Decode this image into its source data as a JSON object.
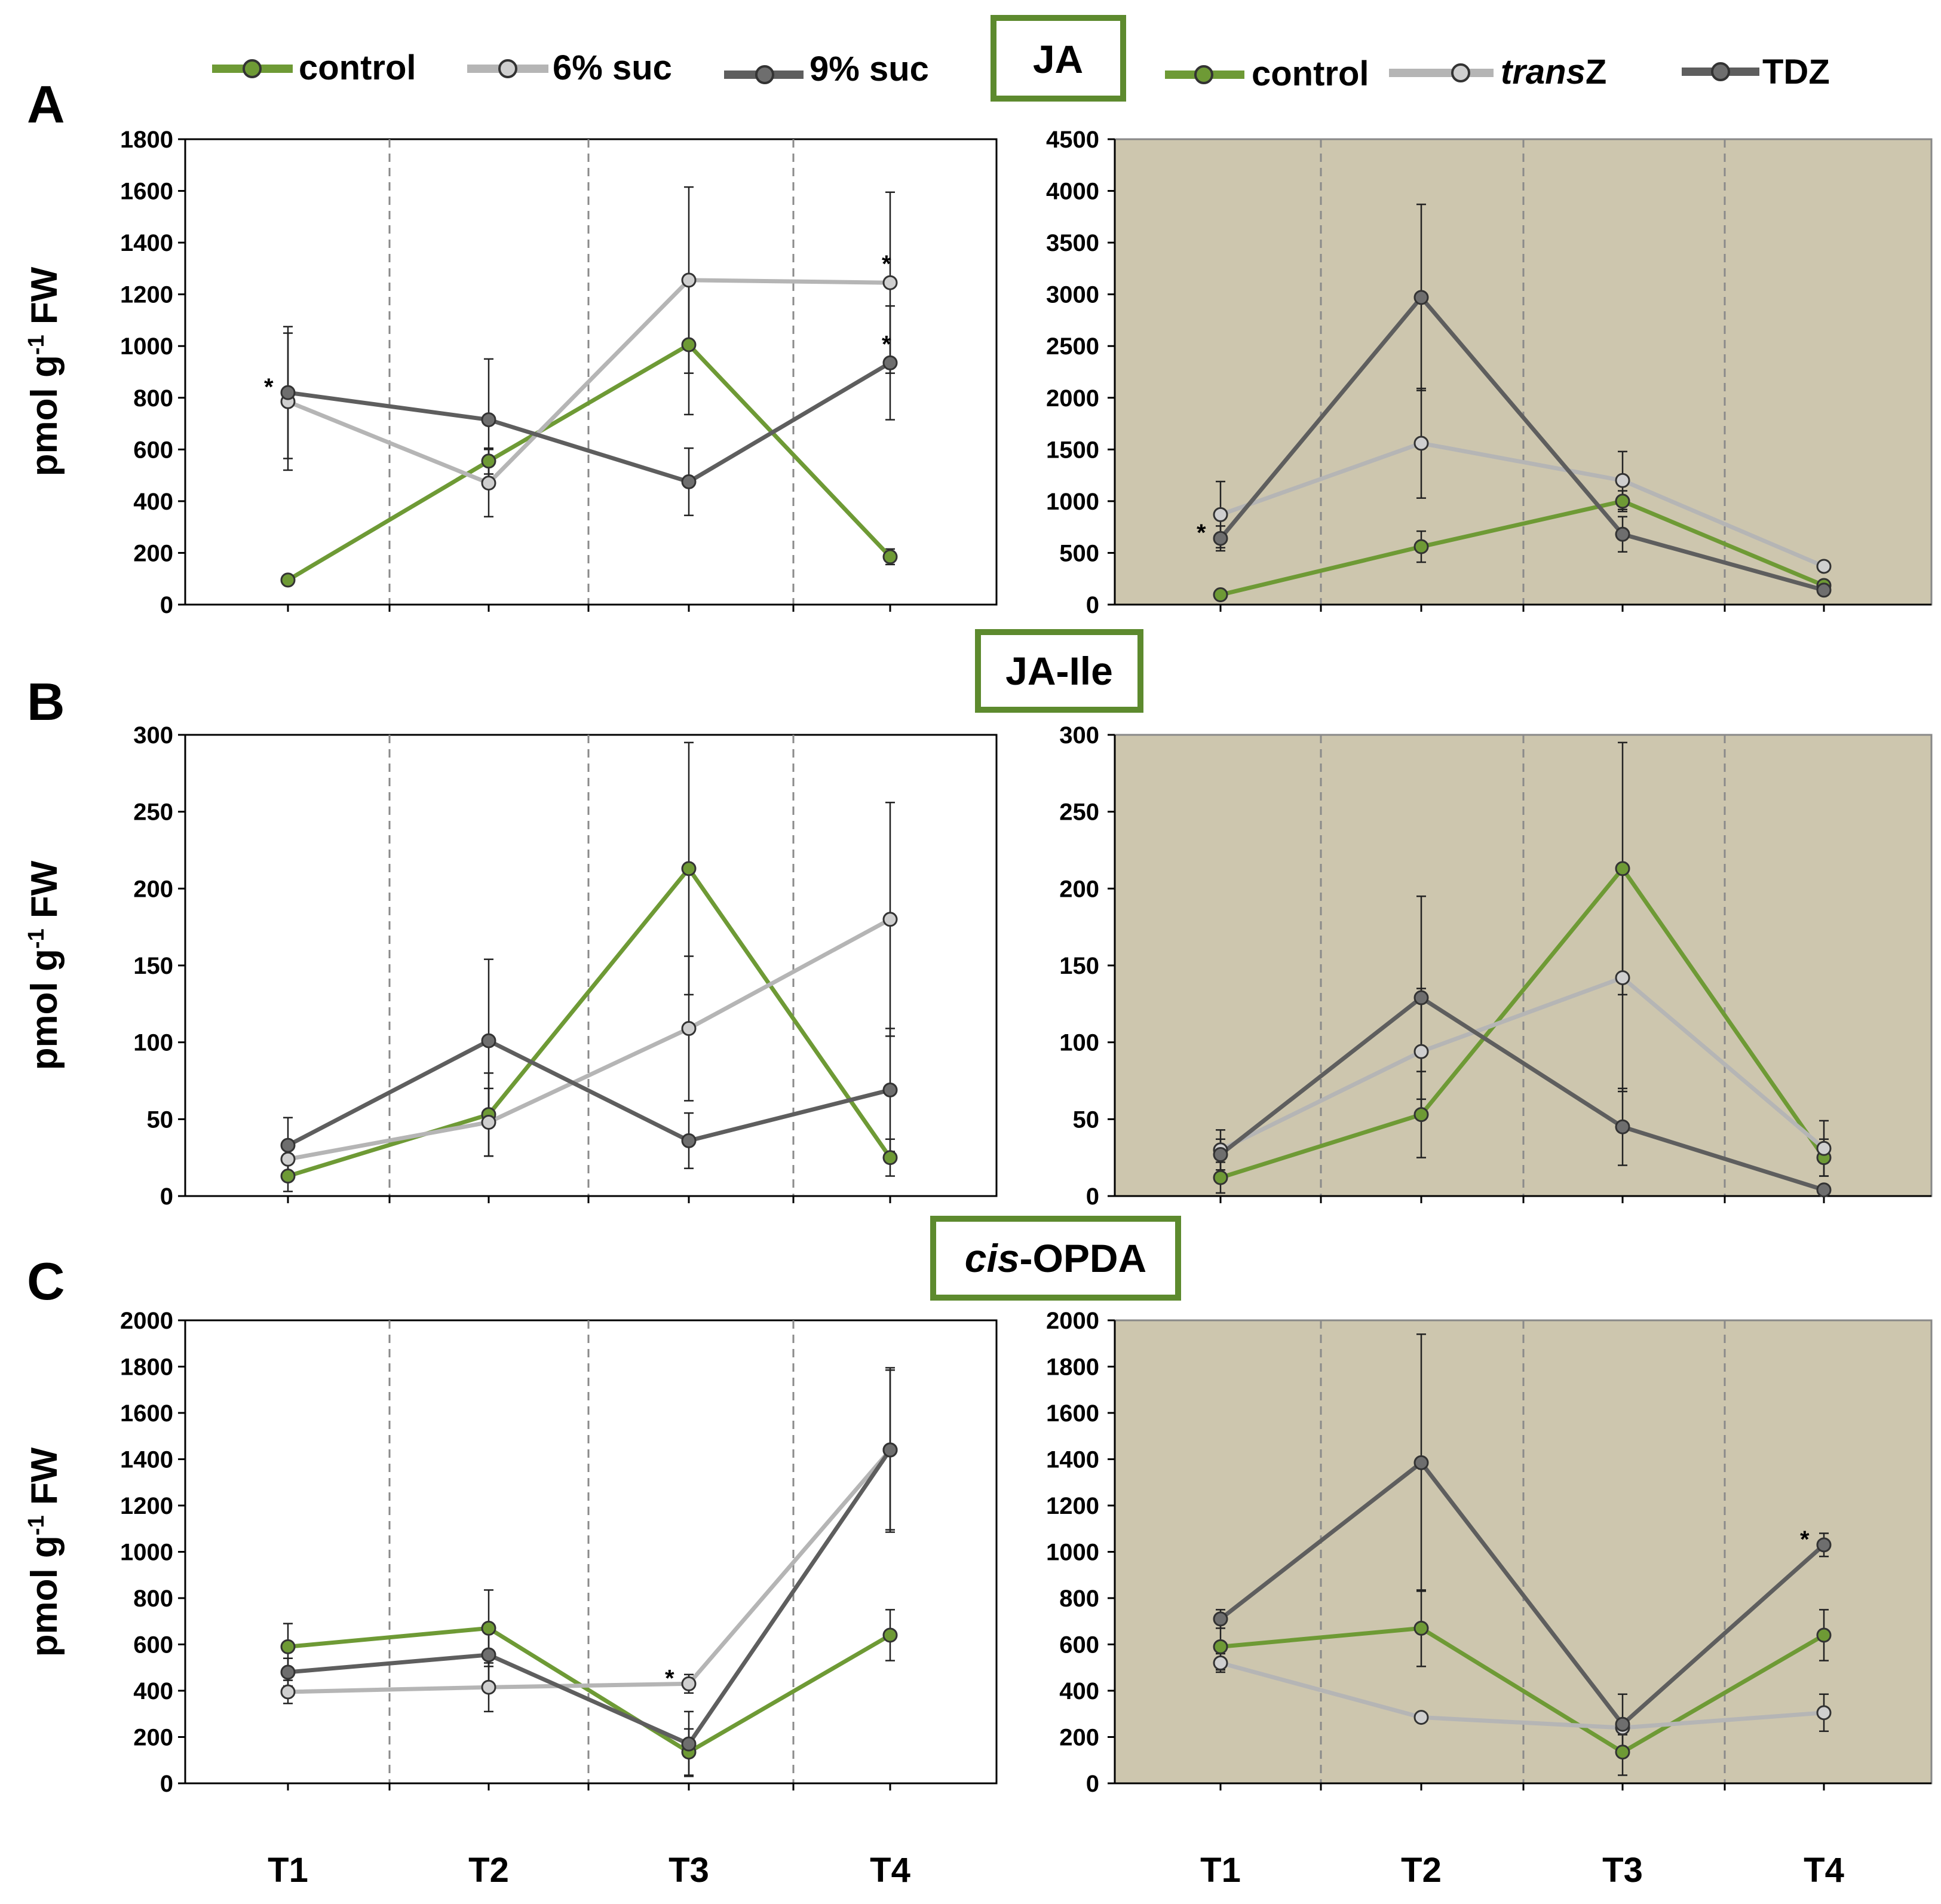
{
  "colors": {
    "control": "#6e9a35",
    "treatment_light": "#b5b5b5",
    "treatment_dark": "#5e5e5e",
    "panel_bg_right": "#cdc6ae",
    "header_border": "#5d8a2e"
  },
  "legend_left": [
    {
      "key": "control",
      "label": "control",
      "color": "#6e9a35"
    },
    {
      "key": "suc6",
      "label": "6% suc",
      "color": "#b5b5b5"
    },
    {
      "key": "suc9",
      "label": "9% suc",
      "color": "#5e5e5e"
    }
  ],
  "legend_right": [
    {
      "key": "control",
      "label": "control",
      "italic_prefix": "",
      "color": "#6e9a35"
    },
    {
      "key": "transZ",
      "label": "Z",
      "italic_prefix": "trans",
      "color": "#b5b5b5"
    },
    {
      "key": "TDZ",
      "label": "TDZ",
      "italic_prefix": "",
      "color": "#5e5e5e"
    }
  ],
  "y_axis_label": "pmol g-1 FW",
  "y_axis_label_parts": {
    "main": "pmol g",
    "sup": "-1",
    "tail": " FW"
  },
  "star": "*",
  "chart_data": [
    {
      "panel": "A",
      "hormone": "JA",
      "side": "left",
      "type": "line",
      "categories": [
        "T1",
        "T2",
        "T3",
        "T4"
      ],
      "ylim": [
        0,
        1800
      ],
      "yticks": [
        0,
        200,
        400,
        600,
        800,
        1000,
        1200,
        1400,
        1600,
        1800
      ],
      "series": [
        {
          "name": "control",
          "values": [
            95,
            555,
            1005,
            185
          ],
          "errors": [
            10,
            50,
            270,
            30
          ]
        },
        {
          "name": "6% suc",
          "values": [
            785,
            470,
            1255,
            1245
          ],
          "errors": [
            265,
            130,
            360,
            350
          ]
        },
        {
          "name": "9% suc",
          "values": [
            820,
            715,
            475,
            935
          ],
          "errors": [
            255,
            235,
            130,
            220
          ]
        }
      ],
      "significance": [
        {
          "series": "9% suc",
          "category": "T1",
          "side": "left"
        },
        {
          "series": "6% suc",
          "category": "T4",
          "side": "top"
        },
        {
          "series": "9% suc",
          "category": "T4",
          "side": "top"
        }
      ]
    },
    {
      "panel": "A",
      "hormone": "JA",
      "side": "right",
      "type": "line",
      "categories": [
        "T1",
        "T2",
        "T3",
        "T4"
      ],
      "ylim": [
        0,
        4500
      ],
      "yticks": [
        0,
        500,
        1000,
        1500,
        2000,
        2500,
        3000,
        3500,
        4000,
        4500
      ],
      "series": [
        {
          "name": "control",
          "values": [
            95,
            560,
            1000,
            185
          ],
          "errors": [
            15,
            150,
            100,
            30
          ]
        },
        {
          "name": "transZ",
          "values": [
            870,
            1560,
            1200,
            370
          ],
          "errors": [
            320,
            530,
            280,
            50
          ]
        },
        {
          "name": "TDZ",
          "values": [
            640,
            2970,
            680,
            140
          ],
          "errors": [
            120,
            900,
            170,
            20
          ]
        }
      ],
      "significance": [
        {
          "series": "TDZ",
          "category": "T1",
          "side": "left"
        }
      ]
    },
    {
      "panel": "B",
      "hormone": "JA-Ile",
      "side": "left",
      "type": "line",
      "categories": [
        "T1",
        "T2",
        "T3",
        "T4"
      ],
      "ylim": [
        0,
        300
      ],
      "yticks": [
        0,
        50,
        100,
        150,
        200,
        250,
        300
      ],
      "series": [
        {
          "name": "control",
          "values": [
            13,
            53,
            213,
            25
          ],
          "errors": [
            10,
            27,
            82,
            12
          ]
        },
        {
          "name": "6% suc",
          "values": [
            24,
            48,
            109,
            180
          ],
          "errors": [
            8,
            22,
            47,
            76
          ]
        },
        {
          "name": "9% suc",
          "values": [
            33,
            101,
            36,
            69
          ],
          "errors": [
            18,
            53,
            18,
            40
          ]
        }
      ],
      "significance": []
    },
    {
      "panel": "B",
      "hormone": "JA-Ile",
      "side": "right",
      "type": "line",
      "categories": [
        "T1",
        "T2",
        "T3",
        "T4"
      ],
      "ylim": [
        0,
        300
      ],
      "yticks": [
        0,
        50,
        100,
        150,
        200,
        250,
        300
      ],
      "series": [
        {
          "name": "control",
          "values": [
            12,
            53,
            213,
            25
          ],
          "errors": [
            10,
            28,
            82,
            12
          ]
        },
        {
          "name": "transZ",
          "values": [
            30,
            94,
            142,
            31
          ],
          "errors": [
            13,
            41,
            74,
            18
          ]
        },
        {
          "name": "TDZ",
          "values": [
            27,
            129,
            45,
            4
          ],
          "errors": [
            10,
            66,
            25,
            3
          ]
        }
      ],
      "significance": []
    },
    {
      "panel": "C",
      "hormone": "cis-OPDA",
      "side": "left",
      "type": "line",
      "categories": [
        "T1",
        "T2",
        "T3",
        "T4"
      ],
      "ylim": [
        0,
        2000
      ],
      "yticks": [
        0,
        200,
        400,
        600,
        800,
        1000,
        1200,
        1400,
        1600,
        1800,
        2000
      ],
      "series": [
        {
          "name": "control",
          "values": [
            590,
            670,
            135,
            640
          ],
          "errors": [
            100,
            165,
            100,
            110
          ]
        },
        {
          "name": "6% suc",
          "values": [
            395,
            415,
            430,
            1440
          ],
          "errors": [
            50,
            105,
            40,
            345
          ]
        },
        {
          "name": "9% suc",
          "values": [
            480,
            555,
            170,
            1440
          ],
          "errors": [
            60,
            130,
            140,
            355
          ]
        }
      ],
      "significance": [
        {
          "series": "6% suc",
          "category": "T3",
          "side": "left"
        }
      ]
    },
    {
      "panel": "C",
      "hormone": "cis-OPDA",
      "side": "right",
      "type": "line",
      "categories": [
        "T1",
        "T2",
        "T3",
        "T4"
      ],
      "ylim": [
        0,
        2000
      ],
      "yticks": [
        0,
        200,
        400,
        600,
        800,
        1000,
        1200,
        1400,
        1600,
        1800,
        2000
      ],
      "series": [
        {
          "name": "control",
          "values": [
            590,
            670,
            135,
            640
          ],
          "errors": [
            100,
            165,
            100,
            110
          ]
        },
        {
          "name": "transZ",
          "values": [
            520,
            285,
            240,
            305
          ],
          "errors": [
            40,
            20,
            30,
            80
          ]
        },
        {
          "name": "TDZ",
          "values": [
            710,
            1385,
            255,
            1030
          ],
          "errors": [
            40,
            555,
            130,
            50
          ]
        }
      ],
      "significance": [
        {
          "series": "TDZ",
          "category": "T4",
          "side": "left"
        }
      ]
    }
  ],
  "panels": [
    {
      "letter": "A",
      "hormone": "JA",
      "hormone_italic_prefix": "",
      "hormone_rest": "JA"
    },
    {
      "letter": "B",
      "hormone": "JA-Ile",
      "hormone_italic_prefix": "",
      "hormone_rest": "JA-Ile"
    },
    {
      "letter": "C",
      "hormone": "cis-OPDA",
      "hormone_italic_prefix": "cis",
      "hormone_rest": "-OPDA"
    }
  ]
}
